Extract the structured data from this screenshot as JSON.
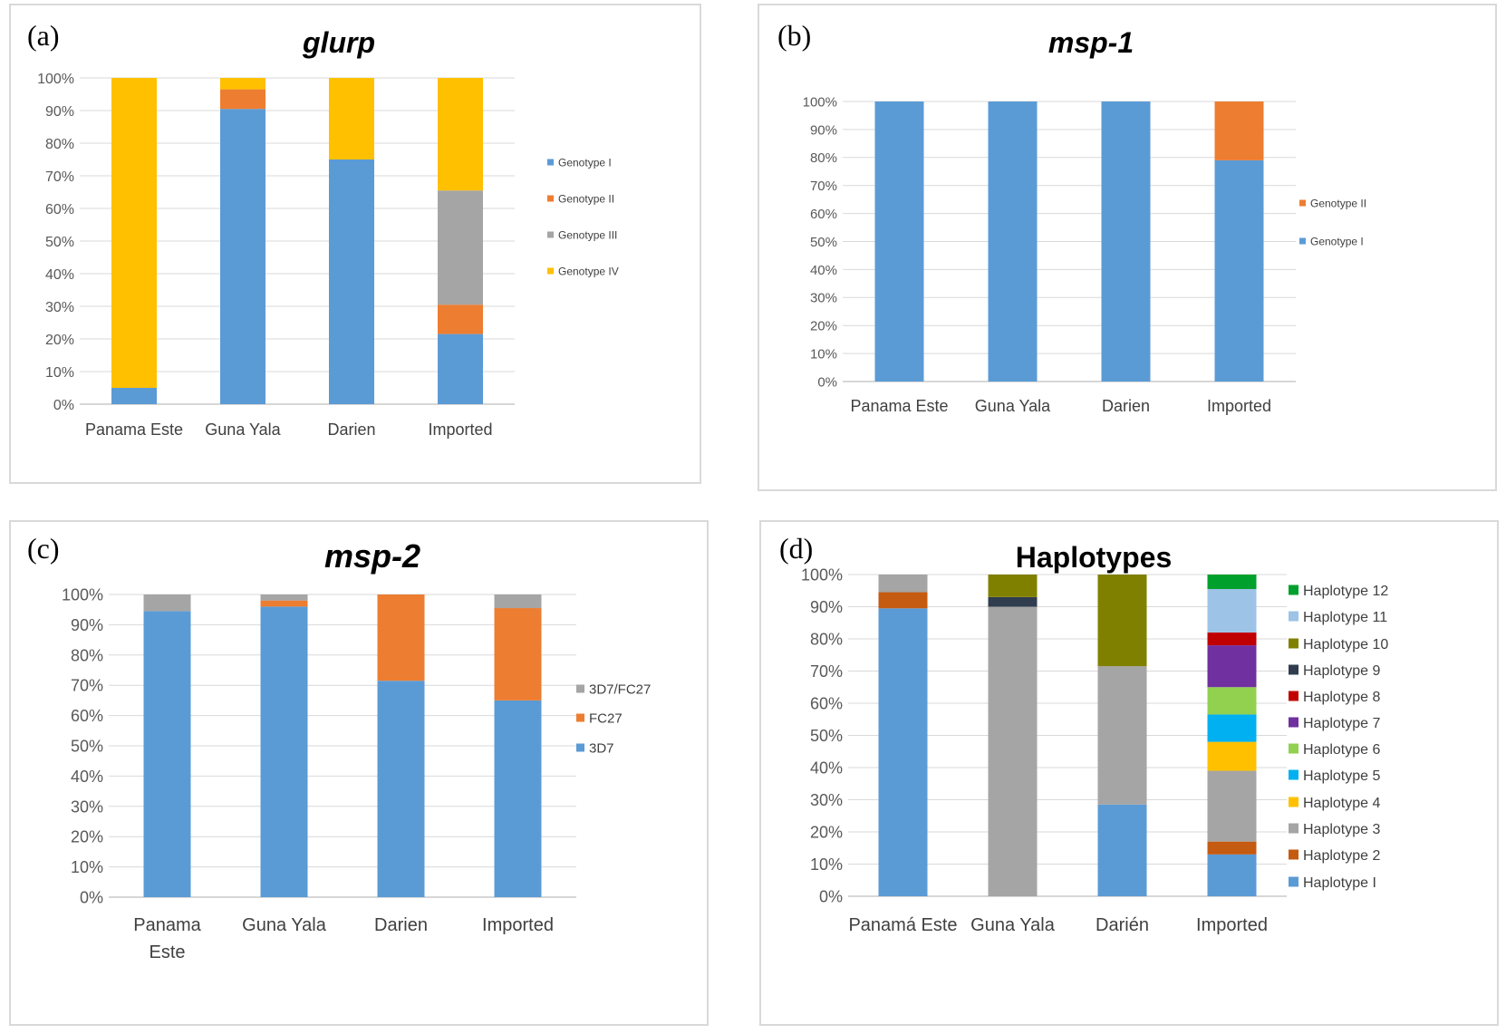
{
  "chart_data": [
    {
      "type": "bar",
      "stacked": true,
      "panel_label": "(a)",
      "title": "glurp",
      "categories": [
        "Panama Este",
        "Guna Yala",
        "Darien",
        "Imported"
      ],
      "ylim": [
        0,
        100
      ],
      "yticks": [
        "0%",
        "10%",
        "20%",
        "30%",
        "40%",
        "50%",
        "60%",
        "70%",
        "80%",
        "90%",
        "100%"
      ],
      "grid": true,
      "legend_position": "right",
      "series": [
        {
          "name": "Genotype I",
          "color": "#5b9bd5",
          "values": [
            5,
            90.5,
            75,
            21.5
          ]
        },
        {
          "name": "Genotype II",
          "color": "#ed7d31",
          "values": [
            0,
            6,
            0,
            9
          ]
        },
        {
          "name": "Genotype III",
          "color": "#a5a5a5",
          "values": [
            0,
            0,
            0,
            35
          ]
        },
        {
          "name": "Genotype  IV",
          "color": "#ffc000",
          "values": [
            95,
            3.5,
            25,
            34.5
          ]
        }
      ]
    },
    {
      "type": "bar",
      "stacked": true,
      "panel_label": "(b)",
      "title": "msp-1",
      "categories": [
        "Panama Este",
        "Guna Yala",
        "Darien",
        "Imported"
      ],
      "ylim": [
        0,
        100
      ],
      "yticks": [
        "0%",
        "10%",
        "20%",
        "30%",
        "40%",
        "50%",
        "60%",
        "70%",
        "80%",
        "90%",
        "100%"
      ],
      "grid": true,
      "legend_position": "right",
      "series": [
        {
          "name": "Genotype I",
          "color": "#5b9bd5",
          "values": [
            100,
            100,
            100,
            79
          ]
        },
        {
          "name": "Genotype II",
          "color": "#ed7d31",
          "values": [
            0,
            0,
            0,
            21
          ]
        }
      ]
    },
    {
      "type": "bar",
      "stacked": true,
      "panel_label": "(c)",
      "title": "msp-2",
      "categories": [
        [
          "Panama",
          "Este"
        ],
        [
          "Guna Yala"
        ],
        [
          "Darien"
        ],
        [
          "Imported"
        ]
      ],
      "ylim": [
        0,
        100
      ],
      "yticks": [
        "0%",
        "10%",
        "20%",
        "30%",
        "40%",
        "50%",
        "60%",
        "70%",
        "80%",
        "90%",
        "100%"
      ],
      "grid": true,
      "legend_position": "right",
      "series": [
        {
          "name": "3D7",
          "color": "#5b9bd5",
          "values": [
            94.5,
            96,
            71.5,
            65
          ]
        },
        {
          "name": "FC27",
          "color": "#ed7d31",
          "values": [
            0,
            2,
            28.5,
            30.5
          ]
        },
        {
          "name": "3D7/FC27",
          "color": "#a5a5a5",
          "values": [
            5.5,
            2,
            0,
            4.5
          ]
        }
      ]
    },
    {
      "type": "bar",
      "stacked": true,
      "panel_label": "(d)",
      "title": "Haplotypes",
      "categories": [
        "Panamá Este",
        "Guna Yala",
        "Darién",
        "Imported"
      ],
      "ylim": [
        0,
        100
      ],
      "yticks": [
        "0%",
        "10%",
        "20%",
        "30%",
        "40%",
        "50%",
        "60%",
        "70%",
        "80%",
        "90%",
        "100%"
      ],
      "grid": true,
      "legend_position": "right",
      "series": [
        {
          "name": "Haplotype I",
          "color": "#5b9bd5",
          "values": [
            89.5,
            0,
            28.5,
            13
          ]
        },
        {
          "name": "Haplotype 2",
          "color": "#c55a11",
          "values": [
            5,
            0,
            0,
            4
          ]
        },
        {
          "name": "Haplotype 3",
          "color": "#a5a5a5",
          "values": [
            5.5,
            90,
            43,
            22
          ]
        },
        {
          "name": "Haplotype 4",
          "color": "#ffc000",
          "values": [
            0,
            0,
            0,
            9
          ]
        },
        {
          "name": "Haplotype 5",
          "color": "#00b0f0",
          "values": [
            0,
            0,
            0,
            8.5
          ]
        },
        {
          "name": "Haplotype 6",
          "color": "#92d050",
          "values": [
            0,
            0,
            0,
            8.5
          ]
        },
        {
          "name": "Haplotype 7",
          "color": "#7030a0",
          "values": [
            0,
            0,
            0,
            13
          ]
        },
        {
          "name": "Haplotype 8",
          "color": "#c00000",
          "values": [
            0,
            0,
            0,
            4
          ]
        },
        {
          "name": "Haplotype 9",
          "color": "#2f3d4f",
          "values": [
            0,
            3,
            0,
            0
          ]
        },
        {
          "name": "Haplotype 10",
          "color": "#808000",
          "values": [
            0,
            7,
            28.5,
            0
          ]
        },
        {
          "name": "Haplotype 11",
          "color": "#9dc3e6",
          "values": [
            0,
            0,
            0,
            13.5
          ]
        },
        {
          "name": "Haplotype 12",
          "color": "#00a02d",
          "values": [
            0,
            0,
            0,
            4.5
          ]
        }
      ]
    }
  ]
}
